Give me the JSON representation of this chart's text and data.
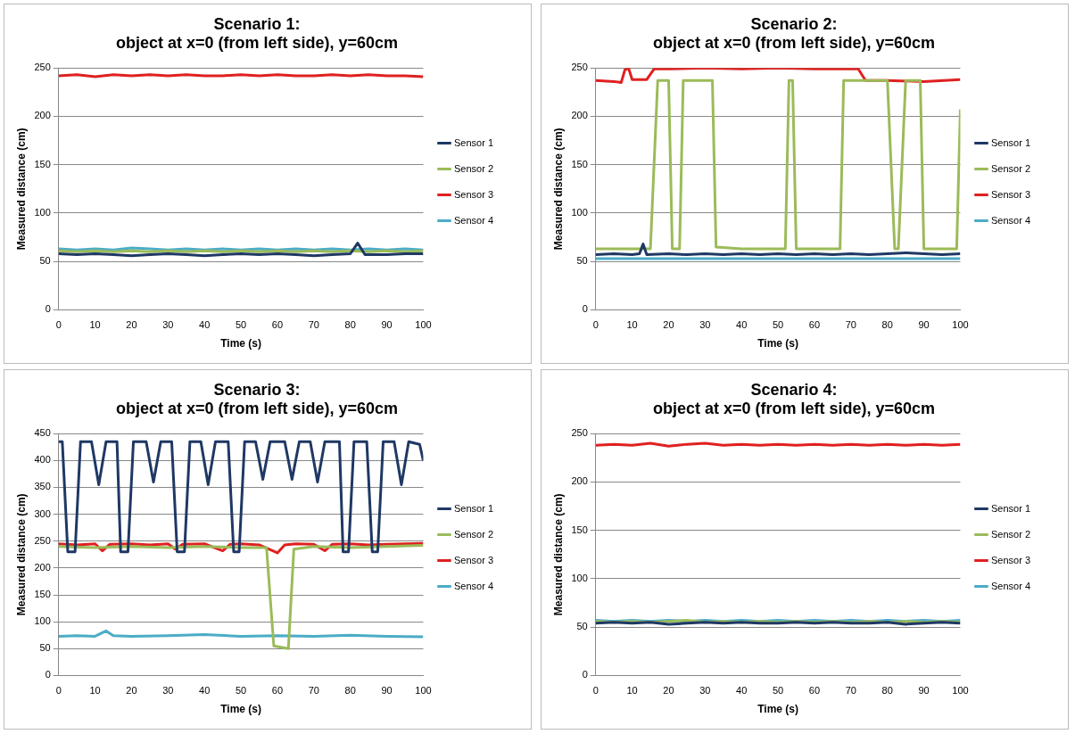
{
  "chart_data": [
    {
      "type": "line",
      "title": "Scenario 1:\nobject at x=0 (from left side), y=60cm",
      "xlabel": "Time (s)",
      "ylabel": "Measured distance (cm)",
      "x": [
        0,
        5,
        10,
        15,
        20,
        25,
        30,
        35,
        40,
        45,
        50,
        55,
        60,
        65,
        70,
        75,
        80,
        85,
        90,
        95,
        100
      ],
      "xlim": [
        0,
        100
      ],
      "xticks": [
        0,
        10,
        20,
        30,
        40,
        50,
        60,
        70,
        80,
        90,
        100
      ],
      "ylim": [
        0,
        250
      ],
      "yticks": [
        0,
        50,
        100,
        150,
        200,
        250
      ],
      "grid": "y",
      "legend": "right",
      "marker": "none",
      "line_style": "solid",
      "series": [
        {
          "name": "Sensor 1",
          "color": "#1f3864",
          "x": [
            0,
            5,
            10,
            15,
            20,
            25,
            30,
            35,
            40,
            45,
            50,
            55,
            60,
            65,
            70,
            75,
            80,
            82,
            84,
            90,
            95,
            100
          ],
          "values": [
            58,
            57,
            58,
            57,
            56,
            57,
            58,
            57,
            56,
            57,
            58,
            57,
            58,
            57,
            56,
            57,
            58,
            69,
            57,
            57,
            58,
            58
          ]
        },
        {
          "name": "Sensor 2",
          "color": "#9bbb59",
          "values": [
            61,
            60,
            61,
            60,
            61,
            60,
            61,
            60,
            61,
            60,
            61,
            60,
            61,
            60,
            61,
            60,
            61,
            60,
            61,
            60,
            61
          ]
        },
        {
          "name": "Sensor 3",
          "color": "#e02020",
          "values": [
            242,
            243,
            241,
            243,
            242,
            243,
            242,
            243,
            242,
            242,
            243,
            242,
            243,
            242,
            242,
            243,
            242,
            243,
            242,
            242,
            241
          ]
        },
        {
          "name": "Sensor 4",
          "color": "#4bacc6",
          "values": [
            63,
            62,
            63,
            62,
            64,
            63,
            62,
            63,
            62,
            63,
            62,
            63,
            62,
            63,
            62,
            63,
            62,
            63,
            62,
            63,
            62
          ]
        }
      ]
    },
    {
      "type": "line",
      "title": "Scenario 2:\nobject at x=0 (from left side), y=60cm",
      "xlabel": "Time (s)",
      "ylabel": "Measured distance (cm)",
      "x": [
        0,
        5,
        10,
        15,
        20,
        25,
        30,
        35,
        40,
        45,
        50,
        55,
        60,
        65,
        70,
        75,
        80,
        85,
        90,
        95,
        100
      ],
      "xlim": [
        0,
        100
      ],
      "xticks": [
        0,
        10,
        20,
        30,
        40,
        50,
        60,
        70,
        80,
        90,
        100
      ],
      "ylim": [
        0,
        250
      ],
      "yticks": [
        0,
        50,
        100,
        150,
        200,
        250
      ],
      "grid": "y",
      "legend": "right",
      "marker": "none",
      "line_style": "solid",
      "series": [
        {
          "name": "Sensor 1",
          "color": "#1f3864",
          "x": [
            0,
            5,
            10,
            12,
            13,
            14,
            20,
            25,
            30,
            35,
            40,
            45,
            50,
            55,
            60,
            65,
            70,
            75,
            80,
            85,
            90,
            95,
            100
          ],
          "values": [
            57,
            58,
            57,
            58,
            68,
            57,
            58,
            57,
            58,
            57,
            58,
            57,
            58,
            57,
            58,
            57,
            58,
            57,
            58,
            59,
            58,
            57,
            58
          ]
        },
        {
          "name": "Sensor 2",
          "color": "#9bbb59",
          "x": [
            0,
            10,
            15,
            17,
            20,
            21,
            23,
            24,
            32,
            33,
            40,
            52,
            53,
            54,
            55,
            60,
            67,
            68,
            73,
            80,
            82,
            83,
            85,
            88,
            89,
            90,
            91,
            95,
            99,
            100
          ],
          "values": [
            63,
            63,
            63,
            237,
            237,
            63,
            63,
            237,
            237,
            65,
            63,
            63,
            237,
            237,
            63,
            63,
            63,
            237,
            237,
            237,
            63,
            63,
            237,
            237,
            237,
            63,
            63,
            63,
            63,
            207
          ]
        },
        {
          "name": "Sensor 3",
          "color": "#e02020",
          "x": [
            0,
            5,
            7,
            8,
            9,
            10,
            14,
            16,
            20,
            30,
            40,
            50,
            60,
            70,
            72,
            74,
            80,
            90,
            100
          ],
          "values": [
            237,
            236,
            235,
            248,
            250,
            238,
            238,
            249,
            249,
            250,
            249,
            250,
            249,
            249,
            249,
            237,
            237,
            236,
            238
          ]
        },
        {
          "name": "Sensor 4",
          "color": "#4bacc6",
          "values": [
            53,
            53,
            53,
            53,
            53,
            53,
            53,
            53,
            53,
            53,
            53,
            53,
            53,
            53,
            53,
            53,
            53,
            53,
            53,
            53,
            53
          ]
        }
      ]
    },
    {
      "type": "line",
      "title": "Scenario 3:\nobject at x=0 (from left side), y=60cm",
      "xlabel": "Time (s)",
      "ylabel": "Measured distance (cm)",
      "xlim": [
        0,
        100
      ],
      "xticks": [
        0,
        10,
        20,
        30,
        40,
        50,
        60,
        70,
        80,
        90,
        100
      ],
      "ylim": [
        0,
        450
      ],
      "yticks": [
        0,
        50,
        100,
        150,
        200,
        250,
        300,
        350,
        400,
        450
      ],
      "grid": "y",
      "legend": "right",
      "marker": "none",
      "line_style": "solid",
      "series": [
        {
          "name": "Sensor 1",
          "color": "#1f3864",
          "x": [
            0,
            1,
            2.5,
            4.5,
            6,
            9,
            11,
            13,
            16,
            17,
            19,
            20.5,
            24,
            26,
            28,
            31,
            32.5,
            34.5,
            36,
            39,
            41,
            43,
            46.5,
            48,
            49.5,
            51,
            54,
            56,
            58,
            62,
            64,
            66,
            69,
            71,
            73,
            77,
            78,
            79.5,
            81,
            84.5,
            86,
            87.5,
            89,
            92,
            94,
            96,
            99,
            100
          ],
          "values": [
            435,
            435,
            230,
            230,
            435,
            435,
            355,
            435,
            435,
            230,
            230,
            435,
            435,
            360,
            435,
            435,
            230,
            230,
            435,
            435,
            355,
            435,
            435,
            230,
            230,
            435,
            435,
            365,
            435,
            435,
            365,
            435,
            435,
            360,
            435,
            435,
            230,
            230,
            435,
            435,
            230,
            230,
            435,
            435,
            355,
            435,
            430,
            400
          ]
        },
        {
          "name": "Sensor 2",
          "color": "#9bbb59",
          "x": [
            0,
            10,
            20,
            30,
            40,
            50,
            57,
            59,
            63,
            64.5,
            70,
            80,
            90,
            100
          ],
          "values": [
            240,
            238,
            240,
            238,
            240,
            238,
            238,
            55,
            50,
            235,
            240,
            238,
            240,
            242
          ]
        },
        {
          "name": "Sensor 3",
          "color": "#e02020",
          "x": [
            0,
            5,
            10,
            12,
            14,
            20,
            25,
            30,
            32,
            34,
            40,
            45,
            47,
            50,
            55,
            60,
            62,
            65,
            70,
            73,
            75,
            80,
            85,
            90,
            95,
            100
          ],
          "values": [
            245,
            243,
            245,
            232,
            244,
            245,
            243,
            245,
            235,
            244,
            245,
            232,
            244,
            245,
            243,
            228,
            243,
            245,
            244,
            232,
            244,
            245,
            243,
            244,
            245,
            246
          ]
        },
        {
          "name": "Sensor 4",
          "color": "#4bacc6",
          "x": [
            0,
            5,
            10,
            13,
            15,
            20,
            30,
            40,
            50,
            60,
            70,
            80,
            90,
            100
          ],
          "values": [
            73,
            74,
            73,
            83,
            74,
            73,
            74,
            76,
            73,
            74,
            73,
            75,
            73,
            72
          ]
        }
      ]
    },
    {
      "type": "line",
      "title": "Scenario 4:\nobject at x=0 (from left side), y=60cm",
      "xlabel": "Time (s)",
      "ylabel": "Measured distance (cm)",
      "x": [
        0,
        5,
        10,
        15,
        20,
        25,
        30,
        35,
        40,
        45,
        50,
        55,
        60,
        65,
        70,
        75,
        80,
        85,
        90,
        95,
        100
      ],
      "xlim": [
        0,
        100
      ],
      "xticks": [
        0,
        10,
        20,
        30,
        40,
        50,
        60,
        70,
        80,
        90,
        100
      ],
      "ylim": [
        0,
        250
      ],
      "yticks": [
        0,
        50,
        100,
        150,
        200,
        250
      ],
      "grid": "y",
      "legend": "right",
      "marker": "none",
      "line_style": "solid",
      "series": [
        {
          "name": "Sensor 1",
          "color": "#1f3864",
          "values": [
            54,
            55,
            54,
            55,
            53,
            54,
            55,
            54,
            55,
            54,
            54,
            55,
            54,
            55,
            54,
            54,
            55,
            53,
            54,
            55,
            54
          ]
        },
        {
          "name": "Sensor 2",
          "color": "#9bbb59",
          "values": [
            56,
            55,
            56,
            55,
            56,
            57,
            55,
            56,
            55,
            56,
            55,
            56,
            55,
            56,
            55,
            56,
            55,
            56,
            55,
            56,
            55
          ]
        },
        {
          "name": "Sensor 3",
          "color": "#e02020",
          "values": [
            238,
            239,
            238,
            240,
            237,
            239,
            240,
            238,
            239,
            238,
            239,
            238,
            239,
            238,
            239,
            238,
            239,
            238,
            239,
            238,
            239
          ]
        },
        {
          "name": "Sensor 4",
          "color": "#4bacc6",
          "values": [
            57,
            56,
            57,
            56,
            57,
            56,
            57,
            56,
            57,
            56,
            57,
            56,
            57,
            56,
            57,
            56,
            57,
            56,
            57,
            56,
            57
          ]
        }
      ]
    }
  ]
}
